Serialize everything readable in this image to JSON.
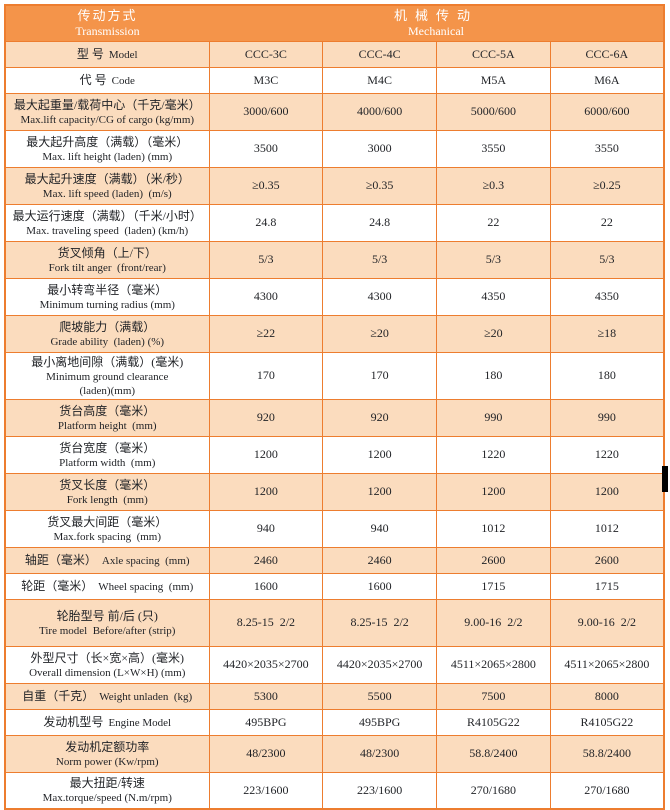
{
  "colors": {
    "header_bg": "#F4944A",
    "row_alt_bg": "#FBDCBE",
    "row_bg": "#FFFFFF",
    "border": "#ED7D2F",
    "header_text": "#FFFFFF",
    "body_text": "#1F2125",
    "artifact": "#000000"
  },
  "table": {
    "header": {
      "transmission_zh": "传动方式",
      "transmission_en": "Transmission",
      "mechanical_zh": "机械传动",
      "mechanical_en": "Mechanical"
    },
    "rows": [
      {
        "zh": "型 号",
        "en": "Model",
        "inline": true,
        "values": [
          "CCC-3C",
          "CCC-4C",
          "CCC-5A",
          "CCC-6A"
        ]
      },
      {
        "zh": "代 号",
        "en": "Code",
        "inline": true,
        "values": [
          "M3C",
          "M4C",
          "M5A",
          "M6A"
        ]
      },
      {
        "zh": "最大起重量/载荷中心（千克/毫米）",
        "en": "Max.lift capacity/CG of cargo (kg/mm)",
        "values": [
          "3000/600",
          "4000/600",
          "5000/600",
          "6000/600"
        ]
      },
      {
        "zh": "最大起升高度（满载）（毫米）",
        "en": "Max. lift height (laden) (mm)",
        "values": [
          "3500",
          "3000",
          "3550",
          "3550"
        ]
      },
      {
        "zh": "最大起升速度（满载）（米/秒）",
        "en": "Max. lift speed (laden)  (m/s)",
        "values": [
          "≥0.35",
          "≥0.35",
          "≥0.3",
          "≥0.25"
        ]
      },
      {
        "zh": "最大运行速度（满载）（千米/小时）",
        "en": "Max. traveling speed  (laden) (km/h)",
        "values": [
          "24.8",
          "24.8",
          "22",
          "22"
        ]
      },
      {
        "zh": "货叉倾角（上/下）",
        "en": "Fork tilt anger  (front/rear)",
        "values": [
          "5/3",
          "5/3",
          "5/3",
          "5/3"
        ]
      },
      {
        "zh": "最小转弯半径（毫米）",
        "en": "Minimum turning radius (mm)",
        "values": [
          "4300",
          "4300",
          "4350",
          "4350"
        ]
      },
      {
        "zh": "爬坡能力（满载）",
        "en": "Grade ability  (laden) (%)",
        "values": [
          "≥22",
          "≥20",
          "≥20",
          "≥18"
        ]
      },
      {
        "zh": "最小离地间隙（满载）(毫米)",
        "en": "Minimum ground clearance\n(laden)(mm)",
        "tall": true,
        "values": [
          "170",
          "170",
          "180",
          "180"
        ]
      },
      {
        "zh": "货台高度（毫米）",
        "en": "Platform height  (mm)",
        "values": [
          "920",
          "920",
          "990",
          "990"
        ]
      },
      {
        "zh": "货台宽度（毫米）",
        "en": "Platform width  (mm)",
        "values": [
          "1200",
          "1200",
          "1220",
          "1220"
        ]
      },
      {
        "zh": "货叉长度（毫米）",
        "en": "Fork length  (mm)",
        "values": [
          "1200",
          "1200",
          "1200",
          "1200"
        ]
      },
      {
        "zh": "货叉最大间距（毫米）",
        "en": "Max.fork spacing  (mm)",
        "values": [
          "940",
          "940",
          "1012",
          "1012"
        ]
      },
      {
        "zh": "轴距（毫米）",
        "en": "Axle spacing  (mm)",
        "inline": true,
        "values": [
          "2460",
          "2460",
          "2600",
          "2600"
        ]
      },
      {
        "zh": "轮距（毫米）",
        "en": "Wheel spacing  (mm)",
        "inline": true,
        "values": [
          "1600",
          "1600",
          "1715",
          "1715"
        ]
      },
      {
        "zh": "轮胎型号 前/后 (只)",
        "en": "Tire model  Before/after (strip)",
        "tall": true,
        "values": [
          "8.25-15  2/2",
          "8.25-15  2/2",
          "9.00-16  2/2",
          "9.00-16  2/2"
        ]
      },
      {
        "zh": "外型尺寸（长×宽×高）(毫米)",
        "en": "Overall dimension (L×W×H) (mm)",
        "values": [
          "4420×2035×2700",
          "4420×2035×2700",
          "4511×2065×2800",
          "4511×2065×2800"
        ]
      },
      {
        "zh": "自重（千克）",
        "en": "Weight unladen  (kg)",
        "inline": true,
        "values": [
          "5300",
          "5500",
          "7500",
          "8000"
        ]
      },
      {
        "zh": "发动机型号",
        "en": "Engine Model",
        "inline": true,
        "values": [
          "495BPG",
          "495BPG",
          "R4105G22",
          "R4105G22"
        ]
      },
      {
        "zh": "发动机定额功率",
        "en": "Norm power (Kw/rpm)",
        "values": [
          "48/2300",
          "48/2300",
          "58.8/2400",
          "58.8/2400"
        ]
      },
      {
        "zh": "最大扭距/转速",
        "en": "Max.torque/speed (N.m/rpm)",
        "values": [
          "223/1600",
          "223/1600",
          "270/1680",
          "270/1680"
        ]
      }
    ]
  }
}
